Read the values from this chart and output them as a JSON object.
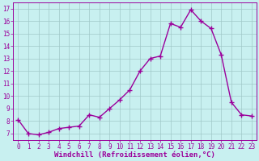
{
  "x": [
    0,
    1,
    2,
    3,
    4,
    5,
    6,
    7,
    8,
    9,
    10,
    11,
    12,
    13,
    14,
    15,
    16,
    17,
    18,
    19,
    20,
    21,
    22,
    23
  ],
  "y": [
    8.1,
    7.0,
    6.9,
    7.1,
    7.4,
    7.5,
    7.6,
    8.5,
    8.3,
    9.0,
    9.7,
    10.5,
    12.0,
    13.0,
    13.2,
    15.8,
    15.5,
    16.9,
    16.0,
    15.4,
    13.3,
    9.5,
    8.5,
    8.4
  ],
  "line_color": "#9b009b",
  "marker": "+",
  "marker_size": 4,
  "linewidth": 1.0,
  "bg_color": "#c8f0f0",
  "grid_color": "#a0c8c8",
  "xlabel": "Windchill (Refroidissement éolien,°C)",
  "xlabel_fontsize": 6.5,
  "ylabel_ticks": [
    7,
    8,
    9,
    10,
    11,
    12,
    13,
    14,
    15,
    16,
    17
  ],
  "xlabel_ticks": [
    0,
    1,
    2,
    3,
    4,
    5,
    6,
    7,
    8,
    9,
    10,
    11,
    12,
    13,
    14,
    15,
    16,
    17,
    18,
    19,
    20,
    21,
    22,
    23
  ],
  "ylim": [
    6.5,
    17.5
  ],
  "xlim": [
    -0.5,
    23.5
  ],
  "tick_fontsize": 5.5,
  "tick_color": "#9b009b",
  "spine_color": "#9b009b"
}
